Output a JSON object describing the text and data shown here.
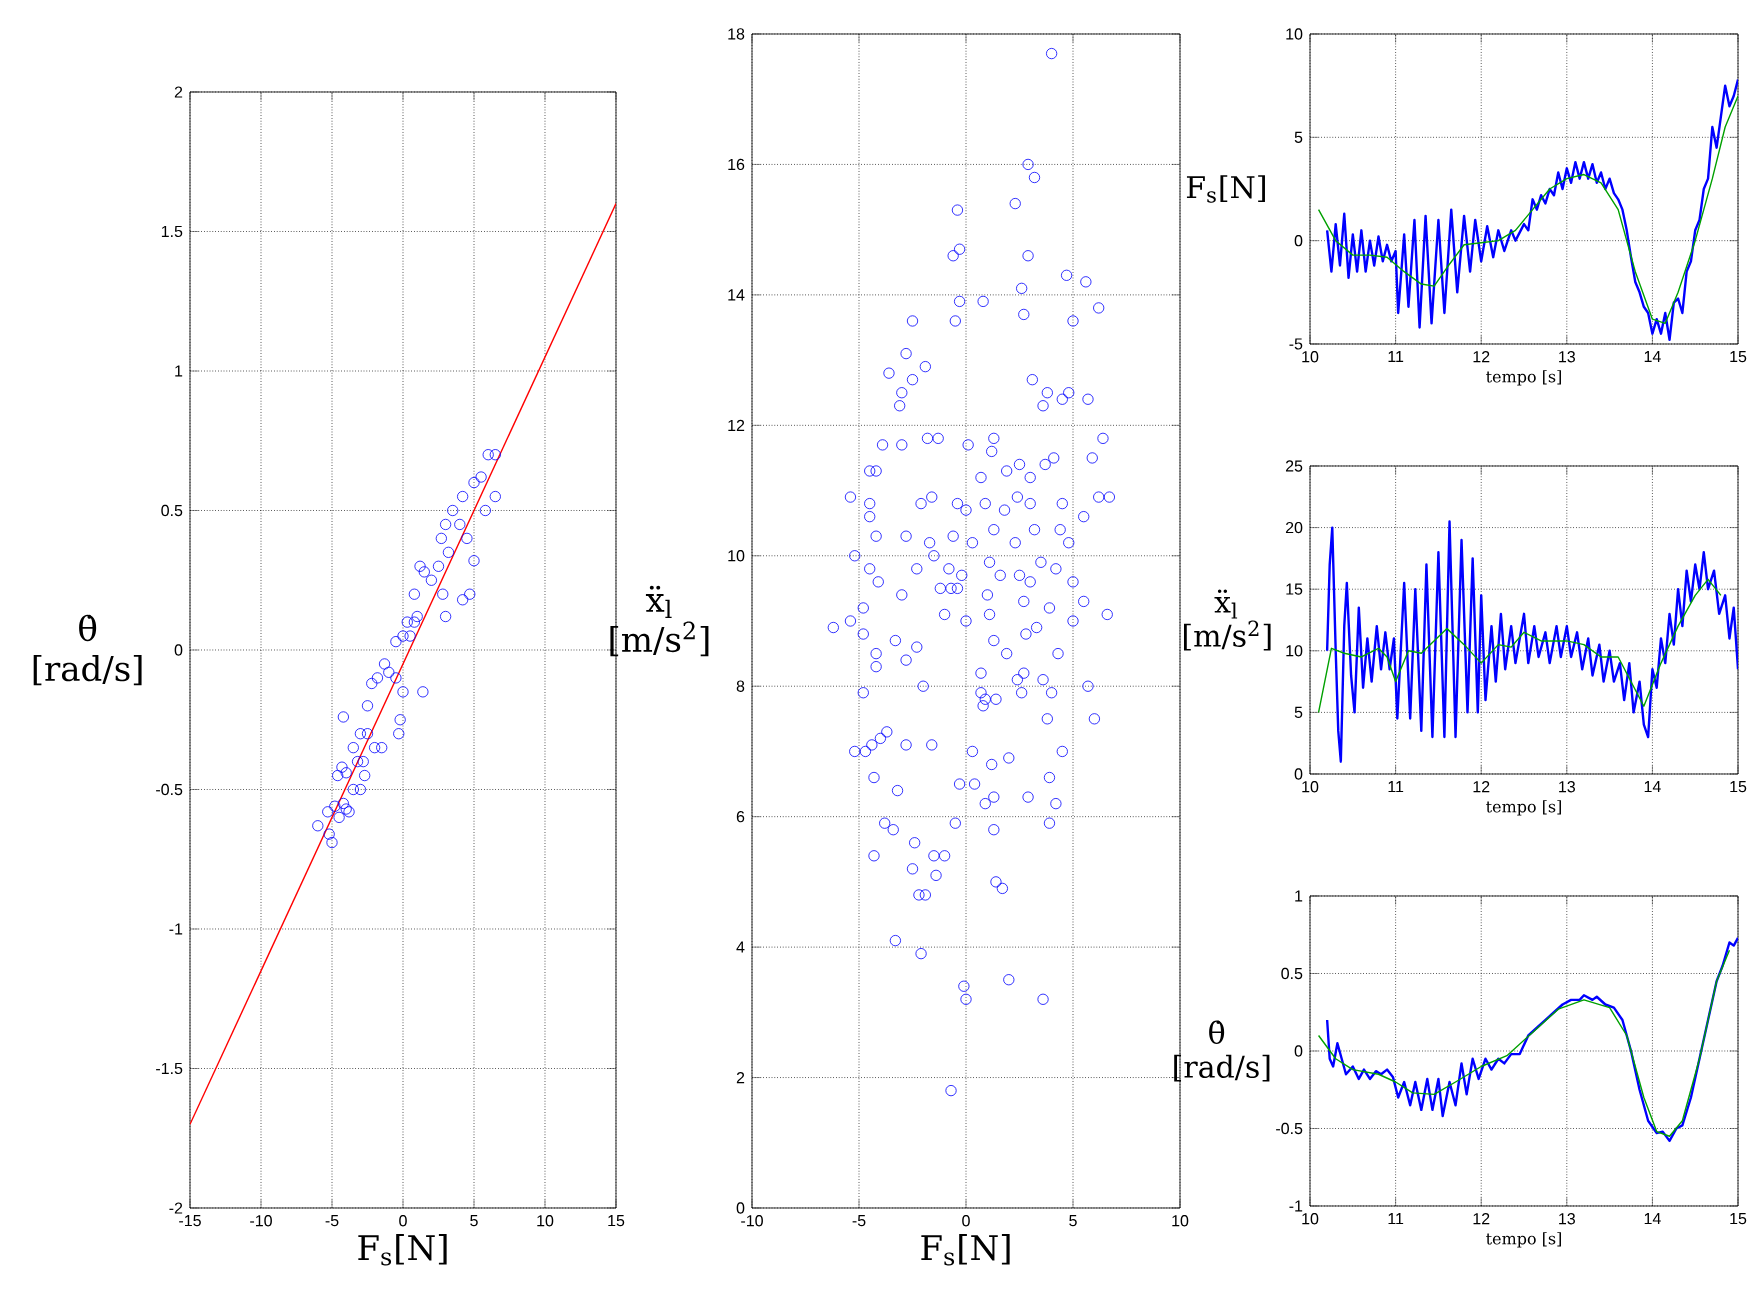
{
  "chart_data": [
    {
      "type": "scatter",
      "xlabel": "F$_{s}$[N]",
      "ylabel": "θ̇ [rad/s]",
      "xlim": [
        -15,
        15
      ],
      "ylim": [
        -2,
        2
      ],
      "xticks": [
        -15,
        -10,
        -5,
        0,
        5,
        10,
        15
      ],
      "yticks": [
        -2,
        -1.5,
        -1,
        -0.5,
        0,
        0.5,
        1,
        1.5,
        2
      ],
      "grid": true,
      "series": [
        {
          "type": "scatter",
          "marker": "circle",
          "color": "#0000ff",
          "x": [
            -6,
            -5.2,
            -5,
            -5.3,
            -4.8,
            -4.5,
            -4.2,
            -4,
            -3.8,
            -4.6,
            -4.3,
            -4,
            -3.5,
            -3,
            -2.7,
            -3.2,
            -2.8,
            -3.5,
            -3,
            -4.2,
            -2.5,
            -2,
            -1.5,
            -2.5,
            -2.2,
            -1.8,
            -1.3,
            -1,
            -0.5,
            -0.3,
            -0.2,
            0,
            -0.5,
            0,
            0.3,
            0.5,
            0.8,
            1,
            1.4,
            0.8,
            1.2,
            1.5,
            2,
            2.5,
            2.8,
            3,
            2.7,
            3,
            3.5,
            3.2,
            4,
            4.2,
            4.2,
            4.7,
            5,
            5,
            5.5,
            6,
            6.5,
            6.5,
            5.8,
            4.5
          ],
          "values": [
            -0.63,
            -0.66,
            -0.69,
            -0.58,
            -0.56,
            -0.6,
            -0.55,
            -0.57,
            -0.58,
            -0.45,
            -0.42,
            -0.44,
            -0.5,
            -0.5,
            -0.45,
            -0.4,
            -0.4,
            -0.35,
            -0.3,
            -0.24,
            -0.3,
            -0.35,
            -0.35,
            -0.2,
            -0.12,
            -0.1,
            -0.05,
            -0.08,
            -0.1,
            -0.3,
            -0.25,
            -0.15,
            0.03,
            0.05,
            0.1,
            0.05,
            0.1,
            0.12,
            -0.15,
            0.2,
            0.3,
            0.28,
            0.25,
            0.3,
            0.2,
            0.12,
            0.4,
            0.45,
            0.5,
            0.35,
            0.45,
            0.55,
            0.18,
            0.2,
            0.32,
            0.6,
            0.62,
            0.7,
            0.7,
            0.55,
            0.5,
            0.4
          ]
        },
        {
          "type": "line",
          "color": "#ff0000",
          "x": [
            -15,
            15
          ],
          "values": [
            -1.7,
            1.6
          ]
        }
      ]
    },
    {
      "type": "scatter",
      "xlabel": "F$_{s}$[N]",
      "ylabel": "ẍ$_{l}$ [m/s$^{2}$]",
      "xlim": [
        -10,
        10
      ],
      "ylim": [
        0,
        18
      ],
      "xticks": [
        -10,
        -5,
        0,
        5,
        10
      ],
      "yticks": [
        0,
        2,
        4,
        6,
        8,
        10,
        12,
        14,
        16,
        18
      ],
      "grid": true,
      "series": [
        {
          "type": "scatter",
          "marker": "circle",
          "color": "#0000ff",
          "x": [
            4.0,
            2.9,
            3.2,
            -0.4,
            2.3,
            -0.6,
            -0.3,
            2.9,
            4.7,
            5.6,
            2.6,
            -0.3,
            0.8,
            -0.5,
            -2.5,
            2.7,
            5.0,
            6.2,
            -3.6,
            -2.8,
            -3.0,
            -3.1,
            -1.9,
            -2.5,
            3.1,
            3.8,
            3.6,
            4.8,
            5.7,
            4.5,
            -3.9,
            -3.0,
            -1.8,
            -1.3,
            0.1,
            1.3,
            1.2,
            6.4,
            5.9,
            -4.5,
            -4.2,
            0.7,
            1.9,
            2.5,
            3.0,
            3.7,
            4.1,
            -5.4,
            -4.5,
            -4.5,
            -2.1,
            -1.6,
            -0.4,
            0.0,
            0.9,
            1.8,
            2.4,
            3.0,
            4.5,
            5.5,
            6.2,
            6.7,
            -4.2,
            -2.8,
            -1.7,
            -0.6,
            0.3,
            1.3,
            2.3,
            3.2,
            4.4,
            4.8,
            -5.2,
            -4.5,
            -4.1,
            -2.3,
            -1.5,
            -0.8,
            -0.2,
            1.1,
            1.6,
            2.5,
            3.5,
            4.2,
            5.0,
            -3.0,
            -1.2,
            -0.7,
            -0.4,
            1.0,
            2.7,
            3.0,
            -4.8,
            -1.0,
            0.0,
            1.1,
            3.9,
            5.0,
            5.5,
            6.6,
            -6.2,
            -5.4,
            -4.8,
            -3.3,
            1.3,
            2.8,
            3.3,
            4.3,
            -4.2,
            -4.2,
            -2.8,
            -2.3,
            -2.0,
            0.7,
            0.7,
            0.9,
            0.8,
            1.4,
            1.9,
            2.4,
            2.7,
            3.6,
            5.7,
            4.0,
            2.6,
            -4.8,
            -5.2,
            -4.7,
            -4.4,
            -4.0,
            -3.7,
            -2.8,
            -1.6,
            0.3,
            1.2,
            2.0,
            3.8,
            4.5,
            6.0,
            -4.3,
            -3.2,
            -0.3,
            0.4,
            0.9,
            1.3,
            2.9,
            3.9,
            4.2,
            -3.8,
            -3.4,
            -0.5,
            1.3,
            3.9,
            -4.3,
            -2.4,
            -1.5,
            -1.0,
            -2.5,
            -1.4,
            1.4,
            1.7,
            -2.2,
            -1.9,
            -3.3,
            -2.1,
            -0.1,
            0.0,
            2.0,
            3.6,
            -0.7
          ],
          "values": [
            17.7,
            16.0,
            15.8,
            15.3,
            15.4,
            14.6,
            14.7,
            14.6,
            14.3,
            14.2,
            14.1,
            13.9,
            13.9,
            13.6,
            13.6,
            13.7,
            13.6,
            13.8,
            12.8,
            13.1,
            12.5,
            12.3,
            12.9,
            12.7,
            12.7,
            12.5,
            12.3,
            12.5,
            12.4,
            12.4,
            11.7,
            11.7,
            11.8,
            11.8,
            11.7,
            11.8,
            11.6,
            11.8,
            11.5,
            11.3,
            11.3,
            11.2,
            11.3,
            11.4,
            11.2,
            11.4,
            11.5,
            10.9,
            10.8,
            10.6,
            10.8,
            10.9,
            10.8,
            10.7,
            10.8,
            10.7,
            10.9,
            10.8,
            10.8,
            10.6,
            10.9,
            10.9,
            10.3,
            10.3,
            10.2,
            10.3,
            10.2,
            10.4,
            10.2,
            10.4,
            10.4,
            10.2,
            10.0,
            9.8,
            9.6,
            9.8,
            10.0,
            9.8,
            9.7,
            9.9,
            9.7,
            9.7,
            9.9,
            9.8,
            9.6,
            9.4,
            9.5,
            9.5,
            9.5,
            9.4,
            9.3,
            9.6,
            9.2,
            9.1,
            9.0,
            9.1,
            9.2,
            9.0,
            9.3,
            9.1,
            8.9,
            9.0,
            8.8,
            8.7,
            8.7,
            8.8,
            8.9,
            8.5,
            8.5,
            8.3,
            8.4,
            8.6,
            8.0,
            8.2,
            7.9,
            7.8,
            7.7,
            7.8,
            8.5,
            8.1,
            8.2,
            8.1,
            8.0,
            7.9,
            7.9,
            7.9,
            7.0,
            7.0,
            7.1,
            7.2,
            7.3,
            7.1,
            7.1,
            7.0,
            6.8,
            6.9,
            7.5,
            7.0,
            7.5,
            6.6,
            6.4,
            6.5,
            6.5,
            6.2,
            6.3,
            6.3,
            6.6,
            6.2,
            5.9,
            5.8,
            5.9,
            5.8,
            5.9,
            5.4,
            5.6,
            5.4,
            5.4,
            5.2,
            5.1,
            5.0,
            4.9,
            4.8,
            4.8,
            4.1,
            3.9,
            3.4,
            3.2,
            3.5,
            3.2,
            1.8
          ]
        }
      ]
    },
    {
      "type": "line",
      "xlabel": "tempo [s]",
      "ylabel": "F$_{s}$[N]",
      "xlim": [
        10,
        15
      ],
      "ylim": [
        -5,
        10
      ],
      "xticks": [
        10,
        11,
        12,
        13,
        14,
        15
      ],
      "yticks": [
        -5,
        0,
        5,
        10
      ],
      "grid": true,
      "series": [
        {
          "color": "#0000ff",
          "x": [
            10.2,
            10.25,
            10.3,
            10.35,
            10.4,
            10.45,
            10.5,
            10.55,
            10.6,
            10.65,
            10.7,
            10.75,
            10.8,
            10.85,
            10.9,
            10.95,
            11.0,
            11.03,
            11.1,
            11.15,
            11.22,
            11.28,
            11.35,
            11.42,
            11.5,
            11.57,
            11.65,
            11.72,
            11.8,
            11.87,
            11.93,
            12.0,
            12.07,
            12.14,
            12.2,
            12.27,
            12.35,
            12.4,
            12.5,
            12.55,
            12.6,
            12.65,
            12.7,
            12.75,
            12.8,
            12.85,
            12.9,
            12.95,
            13.0,
            13.05,
            13.1,
            13.15,
            13.2,
            13.25,
            13.3,
            13.35,
            13.4,
            13.45,
            13.5,
            13.55,
            13.6,
            13.65,
            13.7,
            13.75,
            13.8,
            13.85,
            13.9,
            13.95,
            14.0,
            14.05,
            14.1,
            14.15,
            14.2,
            14.25,
            14.3,
            14.35,
            14.4,
            14.45,
            14.5,
            14.55,
            14.6,
            14.65,
            14.7,
            14.75,
            14.8,
            14.85,
            14.9,
            14.95,
            15.0
          ],
          "values": [
            0.5,
            -1.5,
            0.8,
            -1.2,
            1.3,
            -1.8,
            0.3,
            -1.5,
            0.5,
            -1.5,
            0,
            -1.2,
            0.2,
            -1.0,
            -0.2,
            -1.0,
            -0.5,
            -3.5,
            0.3,
            -3.2,
            1.0,
            -4.2,
            1.2,
            -4.0,
            1.0,
            -3.5,
            1.5,
            -2.5,
            1.2,
            -1.5,
            1.0,
            -1.0,
            0.7,
            -0.8,
            0.5,
            -0.5,
            0.5,
            0,
            0.8,
            0.5,
            2.0,
            1.5,
            2.2,
            1.8,
            2.5,
            2.2,
            3.3,
            2.5,
            3.5,
            2.8,
            3.8,
            3.0,
            3.8,
            3.0,
            3.7,
            2.8,
            3.3,
            2.5,
            3.0,
            2.3,
            2.0,
            1.5,
            0.5,
            -0.8,
            -2.0,
            -2.5,
            -3.2,
            -3.5,
            -4.5,
            -3.8,
            -4.5,
            -3.5,
            -4.8,
            -3.0,
            -2.8,
            -3.5,
            -1.5,
            -1.0,
            0.5,
            1.0,
            2.5,
            3.0,
            5.5,
            4.5,
            6.0,
            7.5,
            6.5,
            7.0,
            7.8
          ]
        },
        {
          "color": "#00a000",
          "x": [
            10.1,
            10.3,
            10.5,
            10.7,
            10.9,
            11.1,
            11.3,
            11.45,
            11.6,
            11.8,
            12.0,
            12.2,
            12.4,
            12.6,
            12.8,
            13.0,
            13.2,
            13.4,
            13.6,
            13.8,
            14.0,
            14.15,
            14.3,
            14.5,
            14.7,
            14.85,
            15.0
          ],
          "values": [
            1.5,
            0,
            -0.7,
            -0.7,
            -0.8,
            -1.5,
            -2.1,
            -2.2,
            -1.3,
            -0.2,
            -0.1,
            0,
            0.5,
            1.5,
            2.5,
            3.0,
            3.2,
            2.8,
            1.5,
            -1.5,
            -3.8,
            -4.0,
            -2.5,
            0,
            3.0,
            5.5,
            7.0
          ]
        }
      ]
    },
    {
      "type": "line",
      "xlabel": "tempo [s]",
      "ylabel": "ẍ$_{l}$ [m/s$^{2}$]",
      "xlim": [
        10,
        15
      ],
      "ylim": [
        0,
        25
      ],
      "xticks": [
        10,
        11,
        12,
        13,
        14,
        15
      ],
      "yticks": [
        0,
        5,
        10,
        15,
        20,
        25
      ],
      "grid": true,
      "series": [
        {
          "color": "#0000ff",
          "x": [
            10.2,
            10.23,
            10.26,
            10.3,
            10.33,
            10.36,
            10.4,
            10.43,
            10.48,
            10.52,
            10.57,
            10.62,
            10.67,
            10.72,
            10.78,
            10.83,
            10.88,
            10.93,
            10.98,
            11.02,
            11.1,
            11.17,
            11.23,
            11.3,
            11.36,
            11.43,
            11.5,
            11.57,
            11.63,
            11.7,
            11.77,
            11.84,
            11.9,
            11.96,
            12.0,
            12.05,
            12.12,
            12.17,
            12.23,
            12.28,
            12.35,
            12.4,
            12.5,
            12.55,
            12.62,
            12.67,
            12.75,
            12.8,
            12.88,
            12.93,
            13.0,
            13.05,
            13.12,
            13.18,
            13.25,
            13.3,
            13.38,
            13.43,
            13.5,
            13.55,
            13.62,
            13.67,
            13.73,
            13.78,
            13.85,
            13.9,
            13.95,
            14.0,
            14.05,
            14.1,
            14.15,
            14.2,
            14.25,
            14.3,
            14.35,
            14.4,
            14.45,
            14.5,
            14.55,
            14.6,
            14.65,
            14.72,
            14.78,
            14.85,
            14.9,
            14.95,
            15.0
          ],
          "values": [
            10,
            17,
            20,
            10,
            3.5,
            1,
            12,
            15.5,
            8,
            5,
            13.5,
            7,
            11,
            7.5,
            12,
            8.5,
            11.5,
            8.5,
            11,
            4.5,
            15.5,
            4.5,
            15,
            3.5,
            17,
            3,
            18,
            3,
            20.5,
            3,
            19,
            5,
            17.5,
            5,
            14.5,
            6,
            12,
            7.5,
            13,
            8.5,
            12,
            9,
            13,
            9,
            12,
            9.5,
            11.5,
            9,
            12,
            9.5,
            12,
            9.5,
            11.5,
            8.5,
            11,
            8,
            10.5,
            7.5,
            10,
            7.5,
            9,
            6,
            9,
            5,
            7.5,
            4,
            3,
            8.5,
            7,
            11,
            9,
            13,
            10.5,
            15,
            12,
            16.5,
            14,
            17,
            15,
            18,
            15,
            16.5,
            13,
            14.5,
            11,
            13.5,
            8.5
          ]
        },
        {
          "color": "#00a000",
          "x": [
            10.1,
            10.25,
            10.4,
            10.6,
            10.8,
            10.9,
            11.0,
            11.15,
            11.3,
            11.6,
            11.8,
            12.0,
            12.2,
            12.35,
            12.5,
            12.7,
            13.0,
            13.2,
            13.4,
            13.6,
            13.9,
            14.1,
            14.3,
            14.5,
            14.65,
            14.8
          ],
          "values": [
            5,
            10.2,
            9.8,
            9.5,
            10.2,
            9.5,
            7.5,
            10,
            9.8,
            11.8,
            10.5,
            9,
            10.5,
            10.3,
            11.5,
            10.8,
            10.8,
            10.5,
            9.5,
            9.5,
            5.5,
            9,
            12,
            14.5,
            15.8,
            14.5
          ]
        }
      ]
    },
    {
      "type": "line",
      "xlabel": "tempo [s]",
      "ylabel": "θ̇ [rad/s]",
      "xlim": [
        10,
        15
      ],
      "ylim": [
        -1,
        1
      ],
      "xticks": [
        10,
        11,
        12,
        13,
        14,
        15
      ],
      "yticks": [
        -1,
        -0.5,
        0,
        0.5,
        1
      ],
      "grid": true,
      "series": [
        {
          "color": "#0000ff",
          "x": [
            10.2,
            10.23,
            10.27,
            10.32,
            10.37,
            10.42,
            10.5,
            10.57,
            10.63,
            10.7,
            10.77,
            10.83,
            10.9,
            10.97,
            11.03,
            11.1,
            11.17,
            11.23,
            11.3,
            11.37,
            11.43,
            11.5,
            11.55,
            11.63,
            11.7,
            11.77,
            11.83,
            11.9,
            11.97,
            12.05,
            12.12,
            12.2,
            12.27,
            12.35,
            12.45,
            12.55,
            12.65,
            12.75,
            12.85,
            12.95,
            13.05,
            13.15,
            13.2,
            13.3,
            13.35,
            13.45,
            13.55,
            13.65,
            13.75,
            13.85,
            13.95,
            14.05,
            14.12,
            14.2,
            14.28,
            14.35,
            14.45,
            14.55,
            14.65,
            14.75,
            14.82,
            14.9,
            14.95,
            15.0
          ],
          "values": [
            0.2,
            -0.05,
            -0.1,
            0.05,
            -0.05,
            -0.15,
            -0.1,
            -0.18,
            -0.12,
            -0.18,
            -0.13,
            -0.15,
            -0.12,
            -0.17,
            -0.3,
            -0.2,
            -0.35,
            -0.2,
            -0.38,
            -0.18,
            -0.38,
            -0.18,
            -0.42,
            -0.2,
            -0.35,
            -0.08,
            -0.28,
            -0.05,
            -0.18,
            -0.05,
            -0.12,
            -0.05,
            -0.08,
            -0.02,
            -0.02,
            0.1,
            0.15,
            0.2,
            0.25,
            0.3,
            0.33,
            0.33,
            0.36,
            0.33,
            0.35,
            0.3,
            0.28,
            0.2,
            0.0,
            -0.25,
            -0.45,
            -0.53,
            -0.52,
            -0.58,
            -0.5,
            -0.48,
            -0.3,
            -0.05,
            0.2,
            0.45,
            0.55,
            0.7,
            0.68,
            0.73
          ]
        },
        {
          "color": "#00a000",
          "x": [
            10.1,
            10.3,
            10.5,
            10.8,
            11.0,
            11.2,
            11.45,
            11.7,
            12.0,
            12.3,
            12.6,
            12.9,
            13.2,
            13.5,
            13.7,
            13.9,
            14.05,
            14.2,
            14.35,
            14.55,
            14.75,
            14.9
          ],
          "values": [
            0.1,
            -0.05,
            -0.12,
            -0.15,
            -0.2,
            -0.27,
            -0.28,
            -0.2,
            -0.1,
            -0.03,
            0.12,
            0.27,
            0.33,
            0.28,
            0.1,
            -0.3,
            -0.52,
            -0.55,
            -0.45,
            -0.05,
            0.45,
            0.65
          ]
        }
      ]
    }
  ]
}
